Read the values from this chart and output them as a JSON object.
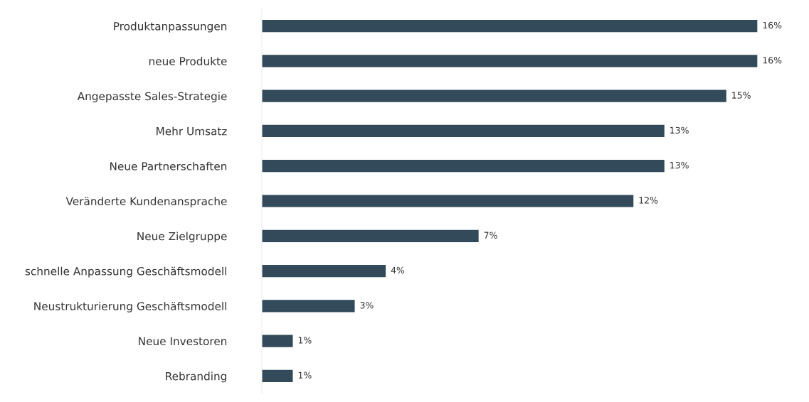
{
  "chart_data": {
    "type": "bar",
    "orientation": "horizontal",
    "categories": [
      "Produktanpassungen",
      "neue Produkte",
      "Angepasste Sales-Strategie",
      "Mehr Umsatz",
      "Neue Partnerschaften",
      "Veränderte Kundenansprache",
      "Neue Zielgruppe",
      "schnelle Anpassung Geschäftsmodell",
      "Neustrukturierung Geschäftsmodell",
      "Neue Investoren",
      "Rebranding"
    ],
    "values": [
      16,
      16,
      15,
      13,
      13,
      12,
      7,
      4,
      3,
      1,
      1
    ],
    "value_labels": [
      "16%",
      "16%",
      "15%",
      "13%",
      "13%",
      "12%",
      "7%",
      "4%",
      "3%",
      "1%",
      "1%"
    ],
    "color": "#324a5a",
    "grid": false,
    "legend": false,
    "tick_labels": "y"
  }
}
